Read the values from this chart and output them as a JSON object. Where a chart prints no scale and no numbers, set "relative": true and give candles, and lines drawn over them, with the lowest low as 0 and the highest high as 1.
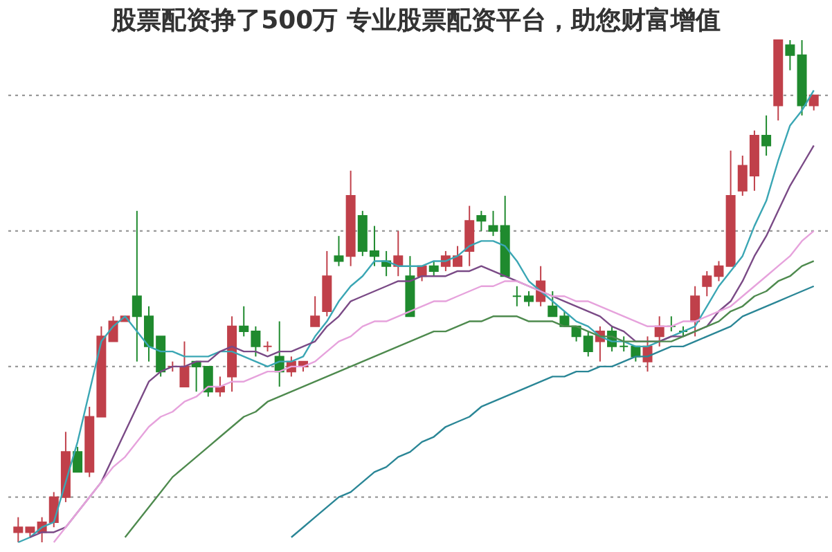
{
  "chart_data": {
    "type": "candlestick",
    "relative": true,
    "title": "股票配资挣了500万 专业股票配资平台，助您财富增值",
    "categories": [
      null,
      null,
      null,
      null,
      null,
      null,
      null,
      null,
      null,
      null,
      null,
      null,
      null,
      null,
      null,
      null,
      null,
      null,
      null,
      null,
      null,
      null,
      null,
      null,
      null,
      null,
      null,
      null,
      null,
      null,
      null,
      null,
      null,
      null,
      null,
      null,
      null,
      null,
      null,
      null,
      null,
      null,
      null,
      null,
      null,
      null,
      null,
      null,
      null,
      null,
      null,
      null,
      null,
      null,
      null,
      null,
      null,
      null,
      null,
      null,
      null,
      null,
      null,
      null,
      null,
      null,
      null,
      null
    ],
    "ohlc": [
      [
        0.02,
        0.05,
        0,
        0.03
      ],
      [
        0.02,
        0.03,
        0.01,
        0.03
      ],
      [
        0.02,
        0.05,
        0,
        0.04
      ],
      [
        0.04,
        0.1,
        0.03,
        0.09
      ],
      [
        0.09,
        0.22,
        0.08,
        0.18
      ],
      [
        0.18,
        0.19,
        0.14,
        0.14
      ],
      [
        0.14,
        0.27,
        0.13,
        0.25
      ],
      [
        0.25,
        0.43,
        0.25,
        0.41
      ],
      [
        0.4,
        0.45,
        0.4,
        0.44
      ],
      [
        0.44,
        0.45,
        0.44,
        0.45
      ],
      [
        0.49,
        0.66,
        0.36,
        0.45
      ],
      [
        0.45,
        0.47,
        0.36,
        0.39
      ],
      [
        0.41,
        0.41,
        0.33,
        0.34
      ],
      [
        0.35,
        0.36,
        0.34,
        0.35
      ],
      [
        0.31,
        0.4,
        0.31,
        0.35
      ],
      [
        0.36,
        0.36,
        0.3,
        0.35
      ],
      [
        0.35,
        0.35,
        0.29,
        0.3
      ],
      [
        0.3,
        0.33,
        0.29,
        0.31
      ],
      [
        0.33,
        0.45,
        0.3,
        0.43
      ],
      [
        0.43,
        0.47,
        0.41,
        0.42
      ],
      [
        0.42,
        0.43,
        0.37,
        0.39
      ],
      [
        0.39,
        0.4,
        0.38,
        0.39
      ],
      [
        0.37,
        0.44,
        0.31,
        0.34
      ],
      [
        0.34,
        0.37,
        0.33,
        0.36
      ],
      [
        0.35,
        0.36,
        0.34,
        0.36
      ],
      [
        0.43,
        0.49,
        0.43,
        0.45
      ],
      [
        0.46,
        0.58,
        0.45,
        0.53
      ],
      [
        0.57,
        0.61,
        0.55,
        0.56
      ],
      [
        0.57,
        0.74,
        0.55,
        0.69
      ],
      [
        0.65,
        0.66,
        0.57,
        0.58
      ],
      [
        0.58,
        0.63,
        0.55,
        0.57
      ],
      [
        0.56,
        0.58,
        0.53,
        0.55
      ],
      [
        0.55,
        0.62,
        0.53,
        0.57
      ],
      [
        0.53,
        0.57,
        0.45,
        0.45
      ],
      [
        0.53,
        0.55,
        0.52,
        0.55
      ],
      [
        0.55,
        0.56,
        0.53,
        0.54
      ],
      [
        0.55,
        0.58,
        0.54,
        0.57
      ],
      [
        0.55,
        0.59,
        0.55,
        0.57
      ],
      [
        0.58,
        0.67,
        0.55,
        0.64
      ],
      [
        0.65,
        0.66,
        0.62,
        0.64
      ],
      [
        0.63,
        0.66,
        0.61,
        0.62
      ],
      [
        0.63,
        0.69,
        0.53,
        0.53
      ],
      [
        0.49,
        0.51,
        0.47,
        0.49
      ],
      [
        0.49,
        0.5,
        0.47,
        0.48
      ],
      [
        0.48,
        0.55,
        0.47,
        0.52
      ],
      [
        0.47,
        0.5,
        0.45,
        0.45
      ],
      [
        0.45,
        0.46,
        0.43,
        0.43
      ],
      [
        0.43,
        0.43,
        0.4,
        0.41
      ],
      [
        0.41,
        0.42,
        0.37,
        0.38
      ],
      [
        0.4,
        0.43,
        0.36,
        0.42
      ],
      [
        0.42,
        0.43,
        0.38,
        0.39
      ],
      [
        0.39,
        0.41,
        0.38,
        0.39
      ],
      [
        0.39,
        0.39,
        0.36,
        0.37
      ],
      [
        0.36,
        0.41,
        0.34,
        0.39
      ],
      [
        0.41,
        0.45,
        0.39,
        0.43
      ],
      [
        0.43,
        0.45,
        0.42,
        0.43
      ],
      [
        0.42,
        0.43,
        0.41,
        0.42
      ],
      [
        0.44,
        0.51,
        0.41,
        0.49
      ],
      [
        0.51,
        0.54,
        0.49,
        0.53
      ],
      [
        0.53,
        0.56,
        0.52,
        0.55
      ],
      [
        0.55,
        0.78,
        0.55,
        0.69
      ],
      [
        0.7,
        0.77,
        0.69,
        0.75
      ],
      [
        0.73,
        0.82,
        0.7,
        0.81
      ],
      [
        0.81,
        0.85,
        0.77,
        0.79
      ],
      [
        0.87,
        1.0,
        0.84,
        1.0
      ],
      [
        0.99,
        1.0,
        0.94,
        0.97
      ],
      [
        0.97,
        1.0,
        0.85,
        0.87
      ],
      [
        0.87,
        0.89,
        0.86,
        0.89
      ]
    ],
    "colors": [
      "#c0404a",
      "#c0404a",
      "#c0404a",
      "#c0404a",
      "#c0404a",
      "#1f8a2e",
      "#c0404a",
      "#c0404a",
      "#c0404a",
      "#c0404a",
      "#1f8a2e",
      "#1f8a2e",
      "#1f8a2e",
      "#c0404a",
      "#c0404a",
      "#1f8a2e",
      "#1f8a2e",
      "#c0404a",
      "#c0404a",
      "#1f8a2e",
      "#1f8a2e",
      "#c0404a",
      "#1f8a2e",
      "#c0404a",
      "#c0404a",
      "#c0404a",
      "#c0404a",
      "#1f8a2e",
      "#c0404a",
      "#1f8a2e",
      "#1f8a2e",
      "#1f8a2e",
      "#c0404a",
      "#1f8a2e",
      "#c0404a",
      "#1f8a2e",
      "#c0404a",
      "#c0404a",
      "#c0404a",
      "#1f8a2e",
      "#1f8a2e",
      "#1f8a2e",
      "#1f8a2e",
      "#1f8a2e",
      "#c0404a",
      "#1f8a2e",
      "#1f8a2e",
      "#1f8a2e",
      "#1f8a2e",
      "#c0404a",
      "#1f8a2e",
      "#1f8a2e",
      "#1f8a2e",
      "#c0404a",
      "#c0404a",
      "#1f8a2e",
      "#1f8a2e",
      "#c0404a",
      "#c0404a",
      "#c0404a",
      "#c0404a",
      "#c0404a",
      "#c0404a",
      "#1f8a2e",
      "#c0404a",
      "#1f8a2e",
      "#1f8a2e",
      "#c0404a"
    ],
    "series": [
      {
        "type": "line",
        "color": "#3aa6b4",
        "values": [
          0.0,
          0.01,
          0.03,
          0.04,
          0.12,
          0.2,
          0.3,
          0.4,
          0.43,
          0.45,
          0.42,
          0.39,
          0.38,
          0.38,
          0.37,
          0.37,
          0.37,
          0.38,
          0.38,
          0.37,
          0.36,
          0.35,
          0.36,
          0.36,
          0.37,
          0.41,
          0.44,
          0.48,
          0.51,
          0.53,
          0.56,
          0.56,
          0.55,
          0.55,
          0.55,
          0.56,
          0.56,
          0.57,
          0.59,
          0.6,
          0.6,
          0.59,
          0.56,
          0.52,
          0.5,
          0.48,
          0.46,
          0.44,
          0.43,
          0.41,
          0.4,
          0.4,
          0.39,
          0.39,
          0.4,
          0.41,
          0.42,
          0.43,
          0.47,
          0.51,
          0.54,
          0.57,
          0.63,
          0.68,
          0.76,
          0.83,
          0.86,
          0.9
        ]
      },
      {
        "type": "line",
        "color": "#7a4a86",
        "values": [
          null,
          0.01,
          0.02,
          0.02,
          0.03,
          0.06,
          0.09,
          0.12,
          0.17,
          0.22,
          0.27,
          0.32,
          0.34,
          0.35,
          0.35,
          0.36,
          0.36,
          0.38,
          0.39,
          0.38,
          0.38,
          0.37,
          0.38,
          0.38,
          0.39,
          0.4,
          0.43,
          0.45,
          0.48,
          0.49,
          0.5,
          0.51,
          0.52,
          0.52,
          0.53,
          0.53,
          0.53,
          0.54,
          0.54,
          0.55,
          0.54,
          0.53,
          0.52,
          0.51,
          0.5,
          0.49,
          0.48,
          0.47,
          0.46,
          0.45,
          0.43,
          0.42,
          0.4,
          0.4,
          0.4,
          0.41,
          0.41,
          0.42,
          0.43,
          0.46,
          0.48,
          0.52,
          0.57,
          0.61,
          0.66,
          0.71,
          0.75,
          0.79
        ]
      },
      {
        "type": "line",
        "color": "#e6a2dc",
        "values": [
          null,
          null,
          null,
          0.0,
          0.03,
          0.06,
          0.09,
          0.12,
          0.15,
          0.17,
          0.2,
          0.23,
          0.25,
          0.26,
          0.28,
          0.29,
          0.31,
          0.31,
          0.32,
          0.32,
          0.33,
          0.34,
          0.34,
          0.35,
          0.35,
          0.36,
          0.38,
          0.4,
          0.41,
          0.43,
          0.44,
          0.44,
          0.45,
          0.46,
          0.47,
          0.48,
          0.48,
          0.49,
          0.5,
          0.51,
          0.51,
          0.52,
          0.52,
          0.51,
          0.5,
          0.49,
          0.49,
          0.48,
          0.48,
          0.47,
          0.46,
          0.45,
          0.44,
          0.43,
          0.43,
          0.43,
          0.44,
          0.44,
          0.45,
          0.46,
          0.47,
          0.49,
          0.51,
          0.53,
          0.55,
          0.57,
          0.6,
          0.62
        ]
      },
      {
        "type": "line",
        "color": "#4e8a4e",
        "values": [
          null,
          null,
          null,
          null,
          null,
          null,
          null,
          null,
          null,
          0.01,
          0.04,
          0.07,
          0.1,
          0.13,
          0.15,
          0.17,
          0.19,
          0.21,
          0.23,
          0.25,
          0.26,
          0.28,
          0.29,
          0.3,
          0.31,
          0.32,
          0.33,
          0.34,
          0.35,
          0.36,
          0.37,
          0.38,
          0.39,
          0.4,
          0.41,
          0.42,
          0.42,
          0.43,
          0.44,
          0.44,
          0.45,
          0.45,
          0.45,
          0.44,
          0.44,
          0.44,
          0.43,
          0.43,
          0.42,
          0.41,
          0.41,
          0.4,
          0.4,
          0.4,
          0.4,
          0.4,
          0.41,
          0.42,
          0.43,
          0.44,
          0.46,
          0.47,
          0.49,
          0.5,
          0.52,
          0.53,
          0.55,
          0.56
        ]
      },
      {
        "type": "line",
        "color": "#2a8696",
        "values": [
          null,
          null,
          null,
          null,
          null,
          null,
          null,
          null,
          null,
          null,
          null,
          null,
          null,
          null,
          null,
          null,
          null,
          null,
          null,
          null,
          null,
          null,
          null,
          0.01,
          0.03,
          0.05,
          0.07,
          0.09,
          0.1,
          0.12,
          0.14,
          0.15,
          0.17,
          0.18,
          0.2,
          0.21,
          0.23,
          0.24,
          0.25,
          0.27,
          0.28,
          0.29,
          0.3,
          0.31,
          0.32,
          0.33,
          0.33,
          0.34,
          0.34,
          0.35,
          0.35,
          0.36,
          0.37,
          0.37,
          0.38,
          0.39,
          0.39,
          0.4,
          0.41,
          0.42,
          0.43,
          0.45,
          0.46,
          0.47,
          0.48,
          0.49,
          0.5,
          0.51
        ]
      }
    ],
    "ref_lines": [
      {
        "axis": "y",
        "value": 0.89,
        "color": "#999999",
        "line_style": "dotted"
      },
      {
        "axis": "y",
        "value": 0.62,
        "color": "#999999",
        "line_style": "dotted"
      },
      {
        "axis": "y",
        "value": 0.35,
        "color": "#999999",
        "line_style": "dotted"
      },
      {
        "axis": "y",
        "value": 0.09,
        "color": "#999999",
        "line_style": "dotted"
      }
    ],
    "tick_labels": false
  }
}
